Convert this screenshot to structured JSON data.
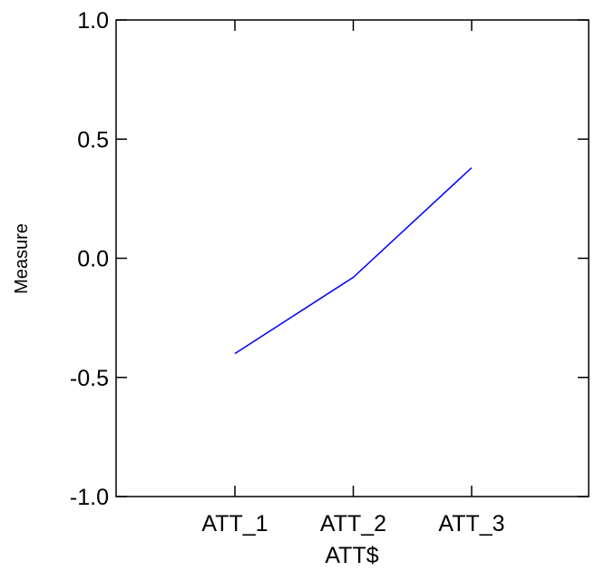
{
  "chart_data": {
    "type": "line",
    "categories": [
      "ATT_1",
      "ATT_2",
      "ATT_3"
    ],
    "series": [
      {
        "values": [
          -0.4,
          -0.08,
          0.38
        ],
        "color": "#0000ff"
      }
    ],
    "xlabel": "ATT$",
    "ylabel": "Measure",
    "ylim": [
      -1.0,
      1.0
    ],
    "yticks": [
      -1.0,
      -0.5,
      0.0,
      0.5,
      1.0
    ],
    "ytick_labels": [
      "-1.0",
      "-0.5",
      "0.0",
      "0.5",
      "1.0"
    ],
    "grid": false,
    "legend": "none"
  }
}
